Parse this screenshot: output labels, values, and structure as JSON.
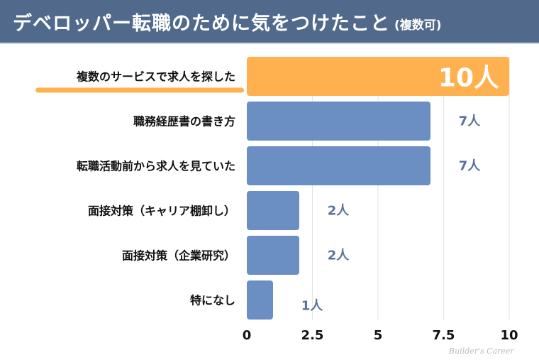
{
  "header": {
    "title": "デベロッパー転職のために気をつけたこと",
    "subtitle": "(複数可)"
  },
  "chart_data": {
    "type": "bar",
    "orientation": "horizontal",
    "categories": [
      "複数のサービスで求人を探した",
      "職務経歴書の書き方",
      "転職活動前から求人を見ていた",
      "面接対策（キャリア棚卸し）",
      "面接対策（企業研究）",
      "特になし"
    ],
    "values": [
      10,
      7,
      7,
      2,
      2,
      1
    ],
    "data_labels": [
      "10人",
      "7人",
      "7人",
      "2人",
      "2人",
      "1人"
    ],
    "xlim": [
      0,
      10
    ],
    "xticks": [
      "0",
      "2.5",
      "5",
      "7.5",
      "10"
    ],
    "grid": "vertical",
    "highlight_index": 0,
    "colors": {
      "bar": "#6b8fc2",
      "highlight": "#ffb14f",
      "label": "#5b7397",
      "header": "#516a8b"
    }
  },
  "watermark": "Builder's Career"
}
